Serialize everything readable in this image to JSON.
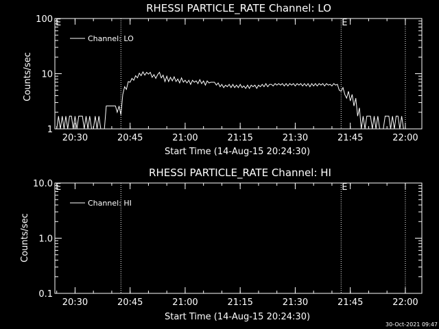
{
  "chart_data": [
    {
      "type": "line",
      "title": "RHESSI PARTICLE_RATE Channel: LO",
      "xlabel": "Start Time (14-Aug-15 20:24:30)",
      "ylabel": "Counts/sec",
      "x_ticks": [
        "20:30",
        "20:45",
        "21:00",
        "21:15",
        "21:30",
        "21:45",
        "22:00"
      ],
      "y_ticks": [
        "1",
        "10",
        "100"
      ],
      "xlim": [
        "20:24:30",
        "22:04:30"
      ],
      "ylim": [
        1,
        100
      ],
      "y_scale": "log",
      "grid": false,
      "legend_position": "top-left",
      "vlines": [
        "20:42:30",
        "21:42:30",
        "22:00:00"
      ],
      "vline_marks": [
        {
          "time": "20:24:30",
          "label": "E"
        },
        {
          "time": "21:42:30",
          "label": "E"
        }
      ],
      "series": [
        {
          "name": "Channel: LO",
          "points": [
            [
              "20:24:30",
              1.0
            ],
            [
              "20:25:00",
              1.0
            ],
            [
              "20:25:30",
              1.7
            ],
            [
              "20:26:00",
              1.0
            ],
            [
              "20:26:30",
              1.7
            ],
            [
              "20:27:00",
              1.0
            ],
            [
              "20:27:30",
              1.7
            ],
            [
              "20:28:00",
              1.0
            ],
            [
              "20:28:30",
              1.7
            ],
            [
              "20:29:00",
              1.7
            ],
            [
              "20:29:30",
              1.0
            ],
            [
              "20:30:00",
              1.7
            ],
            [
              "20:30:30",
              1.0
            ],
            [
              "20:31:00",
              1.7
            ],
            [
              "20:32:00",
              1.7
            ],
            [
              "20:32:30",
              1.0
            ],
            [
              "20:33:00",
              1.7
            ],
            [
              "20:33:30",
              1.0
            ],
            [
              "20:34:00",
              1.7
            ],
            [
              "20:34:30",
              1.0
            ],
            [
              "20:35:00",
              1.0
            ],
            [
              "20:35:30",
              1.7
            ],
            [
              "20:36:00",
              1.0
            ],
            [
              "20:36:30",
              1.7
            ],
            [
              "20:37:00",
              1.0
            ],
            [
              "20:38:00",
              1.0
            ],
            [
              "20:38:30",
              2.6
            ],
            [
              "20:41:00",
              2.6
            ],
            [
              "20:41:30",
              2.0
            ],
            [
              "20:42:00",
              2.6
            ],
            [
              "20:42:30",
              1.8
            ],
            [
              "20:43:00",
              4.2
            ],
            [
              "20:43:30",
              5.8
            ],
            [
              "20:44:00",
              5.2
            ],
            [
              "20:44:30",
              7.2
            ],
            [
              "20:45:00",
              7.0
            ],
            [
              "20:45:30",
              8.2
            ],
            [
              "20:46:00",
              7.6
            ],
            [
              "20:46:30",
              9.2
            ],
            [
              "20:47:00",
              8.4
            ],
            [
              "20:47:30",
              10.2
            ],
            [
              "20:48:00",
              9.2
            ],
            [
              "20:48:30",
              10.8
            ],
            [
              "20:49:00",
              9.4
            ],
            [
              "20:49:30",
              10.6
            ],
            [
              "20:50:00",
              9.8
            ],
            [
              "20:50:30",
              10.6
            ],
            [
              "20:51:00",
              8.6
            ],
            [
              "20:51:30",
              9.6
            ],
            [
              "20:52:00",
              8.2
            ],
            [
              "20:52:30",
              9.6
            ],
            [
              "20:53:00",
              10.6
            ],
            [
              "20:53:30",
              8.4
            ],
            [
              "20:54:00",
              9.4
            ],
            [
              "20:54:30",
              7.2
            ],
            [
              "20:55:00",
              9.0
            ],
            [
              "20:55:30",
              7.2
            ],
            [
              "20:56:00",
              8.6
            ],
            [
              "20:56:30",
              7.4
            ],
            [
              "20:57:00",
              8.8
            ],
            [
              "20:57:30",
              7.2
            ],
            [
              "20:58:00",
              8.0
            ],
            [
              "20:58:30",
              6.8
            ],
            [
              "20:59:00",
              8.4
            ],
            [
              "20:59:30",
              7.0
            ],
            [
              "21:00:00",
              7.6
            ],
            [
              "21:00:30",
              6.8
            ],
            [
              "21:01:00",
              7.6
            ],
            [
              "21:01:30",
              6.4
            ],
            [
              "21:02:00",
              7.6
            ],
            [
              "21:02:30",
              7.0
            ],
            [
              "21:03:00",
              7.4
            ],
            [
              "21:03:30",
              6.6
            ],
            [
              "21:04:00",
              7.8
            ],
            [
              "21:04:30",
              6.6
            ],
            [
              "21:05:00",
              7.4
            ],
            [
              "21:05:30",
              6.2
            ],
            [
              "21:06:00",
              7.4
            ],
            [
              "21:06:30",
              6.8
            ],
            [
              "21:07:00",
              7.0
            ],
            [
              "21:08:00",
              7.0
            ],
            [
              "21:08:30",
              6.2
            ],
            [
              "21:09:00",
              6.8
            ],
            [
              "21:09:30",
              5.8
            ],
            [
              "21:10:00",
              6.4
            ],
            [
              "21:10:30",
              5.6
            ],
            [
              "21:11:00",
              6.2
            ],
            [
              "21:11:30",
              5.8
            ],
            [
              "21:12:00",
              6.4
            ],
            [
              "21:12:30",
              5.6
            ],
            [
              "21:13:00",
              6.4
            ],
            [
              "21:13:30",
              5.6
            ],
            [
              "21:14:00",
              6.2
            ],
            [
              "21:14:30",
              5.6
            ],
            [
              "21:15:00",
              6.4
            ],
            [
              "21:15:30",
              5.6
            ],
            [
              "21:16:00",
              6.0
            ],
            [
              "21:16:30",
              5.4
            ],
            [
              "21:17:00",
              6.2
            ],
            [
              "21:17:30",
              5.4
            ],
            [
              "21:18:00",
              6.2
            ],
            [
              "21:18:30",
              5.8
            ],
            [
              "21:19:00",
              6.2
            ],
            [
              "21:19:30",
              5.4
            ],
            [
              "21:20:00",
              6.2
            ],
            [
              "21:20:30",
              5.8
            ],
            [
              "21:21:00",
              6.4
            ],
            [
              "21:21:30",
              5.8
            ],
            [
              "21:22:00",
              6.6
            ],
            [
              "21:22:30",
              5.8
            ],
            [
              "21:23:00",
              6.4
            ],
            [
              "21:23:30",
              6.4
            ],
            [
              "21:24:00",
              6.0
            ],
            [
              "21:24:30",
              6.6
            ],
            [
              "21:25:00",
              6.2
            ],
            [
              "21:25:30",
              6.6
            ],
            [
              "21:26:00",
              6.2
            ],
            [
              "21:26:30",
              6.6
            ],
            [
              "21:27:00",
              6.0
            ],
            [
              "21:27:30",
              6.6
            ],
            [
              "21:28:00",
              6.0
            ],
            [
              "21:28:30",
              6.6
            ],
            [
              "21:29:00",
              6.2
            ],
            [
              "21:29:30",
              6.6
            ],
            [
              "21:30:00",
              6.0
            ],
            [
              "21:30:30",
              6.6
            ],
            [
              "21:31:00",
              6.2
            ],
            [
              "21:31:30",
              6.6
            ],
            [
              "21:32:00",
              6.0
            ],
            [
              "21:32:30",
              6.6
            ],
            [
              "21:33:00",
              6.0
            ],
            [
              "21:33:30",
              6.6
            ],
            [
              "21:34:00",
              5.8
            ],
            [
              "21:34:30",
              6.6
            ],
            [
              "21:35:00",
              6.0
            ],
            [
              "21:35:30",
              6.6
            ],
            [
              "21:36:00",
              6.0
            ],
            [
              "21:36:30",
              6.6
            ],
            [
              "21:37:00",
              6.2
            ],
            [
              "21:37:30",
              6.6
            ],
            [
              "21:38:00",
              6.0
            ],
            [
              "21:38:30",
              6.6
            ],
            [
              "21:39:00",
              6.2
            ],
            [
              "21:39:30",
              6.4
            ],
            [
              "21:40:00",
              6.0
            ],
            [
              "21:40:30",
              6.6
            ],
            [
              "21:41:00",
              6.2
            ],
            [
              "21:41:30",
              6.4
            ],
            [
              "21:42:00",
              5.0
            ],
            [
              "21:42:30",
              4.8
            ],
            [
              "21:43:00",
              5.6
            ],
            [
              "21:43:30",
              4.2
            ],
            [
              "21:44:00",
              3.6
            ],
            [
              "21:44:30",
              4.8
            ],
            [
              "21:45:00",
              3.2
            ],
            [
              "21:45:30",
              4.2
            ],
            [
              "21:46:00",
              2.6
            ],
            [
              "21:46:30",
              3.6
            ],
            [
              "21:47:00",
              1.7
            ],
            [
              "21:47:30",
              2.4
            ],
            [
              "21:48:00",
              1.0
            ],
            [
              "21:48:30",
              1.7
            ],
            [
              "21:49:00",
              1.0
            ],
            [
              "21:49:30",
              1.7
            ],
            [
              "21:50:00",
              1.7
            ],
            [
              "21:50:30",
              1.7
            ],
            [
              "21:51:00",
              1.0
            ],
            [
              "21:51:30",
              1.7
            ],
            [
              "21:52:00",
              1.0
            ],
            [
              "21:52:30",
              1.7
            ],
            [
              "21:53:00",
              1.0
            ],
            [
              "21:54:00",
              1.0
            ],
            [
              "21:54:30",
              1.7
            ],
            [
              "21:55:30",
              1.7
            ],
            [
              "21:56:00",
              1.0
            ],
            [
              "21:56:30",
              1.7
            ],
            [
              "21:57:00",
              1.0
            ],
            [
              "21:57:30",
              1.7
            ],
            [
              "21:58:00",
              1.7
            ],
            [
              "21:58:30",
              1.0
            ],
            [
              "21:59:00",
              1.7
            ],
            [
              "21:59:30",
              1.0
            ],
            [
              "22:00:00",
              1.0
            ]
          ]
        }
      ]
    },
    {
      "type": "line",
      "title": "RHESSI PARTICLE_RATE Channel: HI",
      "xlabel": "Start Time (14-Aug-15 20:24:30)",
      "ylabel": "Counts/sec",
      "x_ticks": [
        "20:30",
        "20:45",
        "21:00",
        "21:15",
        "21:30",
        "21:45",
        "22:00"
      ],
      "y_ticks": [
        "0.1",
        "1.0",
        "10.0"
      ],
      "xlim": [
        "20:24:30",
        "22:04:30"
      ],
      "ylim": [
        0.1,
        10
      ],
      "y_scale": "log",
      "grid": false,
      "legend_position": "top-left",
      "vlines": [
        "20:42:30",
        "21:42:30",
        "22:00:00"
      ],
      "vline_marks": [
        {
          "time": "20:24:30",
          "label": "E"
        },
        {
          "time": "21:42:30",
          "label": "E"
        }
      ],
      "series": [
        {
          "name": "Channel: HI",
          "points": []
        }
      ]
    }
  ],
  "footer": {
    "date_stamp": "30-Oct-2021 09:47"
  }
}
